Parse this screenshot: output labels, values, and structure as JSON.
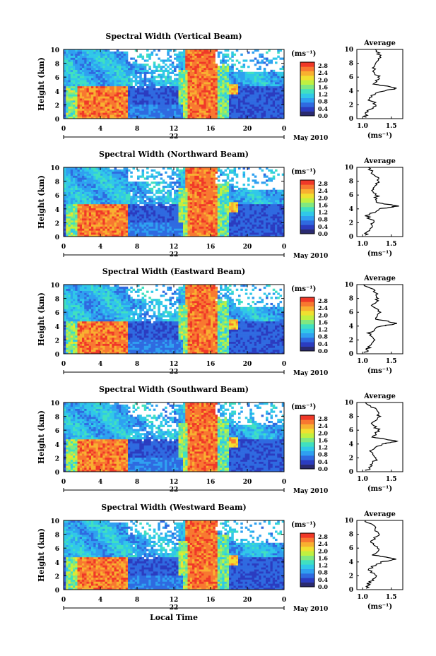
{
  "chart_data": {
    "type": "heatmap",
    "panels": [
      {
        "title": "Spectral Width (Vertical Beam)",
        "average_x": [
          1.03,
          1.08,
          1.25,
          1.08,
          1.35,
          1.62,
          1.2,
          1.28,
          1.18,
          1.26,
          1.31,
          1.22
        ],
        "average_height_km": [
          0.2,
          1.0,
          2.0,
          3.0,
          4.0,
          4.4,
          5.0,
          6.0,
          7.0,
          8.0,
          9.0,
          10.0
        ]
      },
      {
        "title": "Spectral Width (Northward Beam)",
        "average_x": [
          1.05,
          1.1,
          1.2,
          1.07,
          1.3,
          1.6,
          1.22,
          1.25,
          1.15,
          1.28,
          1.2,
          1.1
        ],
        "average_height_km": [
          0.2,
          1.0,
          2.0,
          3.0,
          4.0,
          4.4,
          5.0,
          6.0,
          7.0,
          8.0,
          9.0,
          10.0
        ]
      },
      {
        "title": "Spectral Width (Eastward Beam)",
        "average_x": [
          1.05,
          1.12,
          1.22,
          1.1,
          1.32,
          1.62,
          1.22,
          1.3,
          1.15,
          1.28,
          1.22,
          1.02
        ],
        "average_height_km": [
          0.2,
          1.0,
          2.0,
          3.0,
          4.0,
          4.4,
          5.0,
          6.0,
          7.0,
          8.0,
          9.0,
          10.0
        ]
      },
      {
        "title": "Spectral Width (Southward Beam)",
        "average_x": [
          1.08,
          1.15,
          1.25,
          1.12,
          1.35,
          1.62,
          1.2,
          1.28,
          1.16,
          1.3,
          1.24,
          1.05
        ],
        "average_height_km": [
          0.2,
          1.0,
          2.0,
          3.0,
          4.0,
          4.4,
          5.0,
          6.0,
          7.0,
          8.0,
          9.0,
          10.0
        ]
      },
      {
        "title": "Spectral Width (Westward Beam)",
        "average_x": [
          1.06,
          1.12,
          1.22,
          1.1,
          1.33,
          1.6,
          1.2,
          1.27,
          1.15,
          1.28,
          1.22,
          1.05
        ],
        "average_height_km": [
          0.2,
          1.0,
          2.0,
          3.0,
          4.0,
          4.4,
          5.0,
          6.0,
          7.0,
          8.0,
          9.0,
          10.0
        ]
      }
    ],
    "ylabel": "Height (km)",
    "ylim": [
      0,
      10
    ],
    "yticks": [
      "0",
      "2",
      "4",
      "6",
      "8",
      "10"
    ],
    "xlabel": "Local Time",
    "xticks": [
      "0",
      "4",
      "8",
      "12",
      "16",
      "20",
      "0"
    ],
    "xlim": [
      0,
      24
    ],
    "day_label": "22",
    "date_label": "May 2010",
    "colorbar": {
      "unit_label": "(ms⁻¹)",
      "ticks": [
        "0.0",
        "0.4",
        "0.8",
        "1.2",
        "1.6",
        "2.0",
        "2.4",
        "2.8"
      ],
      "range": [
        0.0,
        3.0
      ],
      "colors": [
        "#2a2a70",
        "#2b3cc0",
        "#2f6ae0",
        "#2fa0f0",
        "#30c8e8",
        "#40e0c0",
        "#80e880",
        "#c0f040",
        "#f0e030",
        "#f8b030",
        "#f87830",
        "#f03828"
      ]
    },
    "average": {
      "title": "Average",
      "xlabel": "(ms⁻¹)",
      "xticks": [
        "1.0",
        "1.5"
      ],
      "xlim": [
        0.9,
        1.7
      ]
    }
  }
}
